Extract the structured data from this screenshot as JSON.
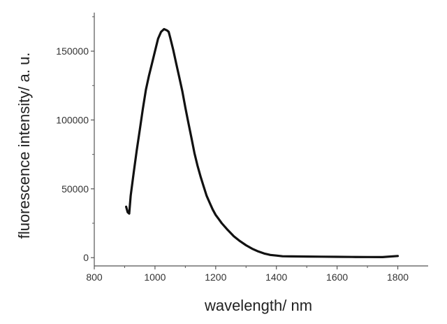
{
  "chart_data": {
    "type": "line",
    "title": "",
    "xlabel": "wavelength/ nm",
    "ylabel": "fluorescence intensity/ a. u.",
    "xlim": [
      800,
      1900
    ],
    "ylim": [
      -6000,
      178000
    ],
    "xticks": [
      800,
      1000,
      1200,
      1400,
      1600,
      1800
    ],
    "xtick_labels": [
      "800",
      "1000",
      "1200",
      "1400",
      "1600",
      "1800"
    ],
    "yticks": [
      0,
      50000,
      100000,
      150000
    ],
    "ytick_labels": [
      "0",
      "50000",
      "100000",
      "150000"
    ],
    "grid": false,
    "legend": "none",
    "series_color": "#111111",
    "series": [
      {
        "x": [
          905,
          910,
          915,
          920,
          930,
          940,
          950,
          960,
          970,
          980,
          990,
          1000,
          1010,
          1020,
          1030,
          1040,
          1045,
          1050,
          1060,
          1070,
          1080,
          1090,
          1100,
          1110,
          1120,
          1130,
          1140,
          1150,
          1160,
          1170,
          1180,
          1190,
          1200,
          1210,
          1220,
          1240,
          1260,
          1280,
          1300,
          1320,
          1340,
          1360,
          1380,
          1400,
          1420,
          1450,
          1500,
          1550,
          1600,
          1650,
          1700,
          1750,
          1800
        ],
        "y": [
          37000,
          33000,
          32000,
          45000,
          62000,
          78000,
          93000,
          108000,
          122000,
          132000,
          141000,
          150000,
          159000,
          164000,
          166000,
          165000,
          164000,
          160000,
          151000,
          141000,
          131000,
          121000,
          109000,
          98000,
          87000,
          76000,
          67000,
          59000,
          52000,
          45000,
          40000,
          35000,
          31000,
          28000,
          25000,
          20000,
          15500,
          12000,
          9000,
          6500,
          4500,
          3000,
          2000,
          1500,
          1000,
          900,
          800,
          700,
          600,
          500,
          450,
          400,
          1200
        ]
      }
    ]
  }
}
